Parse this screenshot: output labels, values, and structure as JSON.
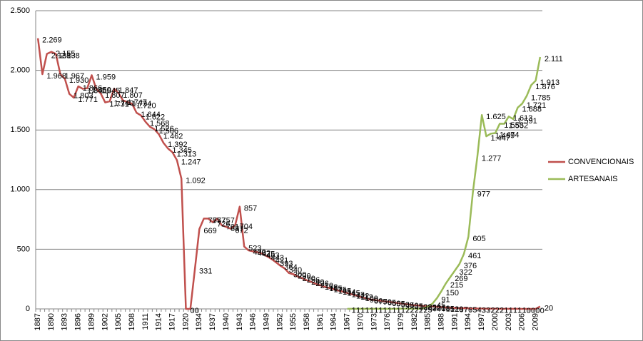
{
  "chart_data": {
    "type": "line",
    "categories": [
      "1887",
      null,
      null,
      "1890",
      null,
      null,
      "1893",
      null,
      null,
      "1896",
      null,
      null,
      "1899",
      null,
      null,
      "1902",
      null,
      null,
      "1905",
      null,
      null,
      "1908",
      null,
      null,
      "1911",
      null,
      null,
      "1914",
      null,
      null,
      "1917",
      null,
      null,
      "1920",
      null,
      null,
      "1934",
      null,
      null,
      "1937",
      null,
      null,
      "1940",
      null,
      null,
      "1943",
      null,
      null,
      "1946",
      null,
      null,
      "1949",
      null,
      null,
      "1952",
      null,
      null,
      "1955",
      null,
      null,
      "1958",
      null,
      null,
      "1961",
      null,
      null,
      "1964",
      null,
      null,
      "1967",
      null,
      null,
      "1970",
      null,
      null,
      "1973",
      null,
      null,
      "1976",
      null,
      null,
      "1979",
      null,
      null,
      "1982",
      null,
      null,
      "1985",
      null,
      null,
      "1988",
      null,
      null,
      "1991",
      null,
      null,
      "1994",
      null,
      null,
      "1997",
      null,
      null,
      "2000",
      null,
      null,
      "2003",
      null,
      null,
      "2006",
      null,
      null,
      "2009",
      null
    ],
    "series": [
      {
        "name": "CONVENCIONAIS",
        "color": "#c0504d",
        "values": [
          2269,
          1968,
          2138,
          2155,
          2138,
          1967,
          1930,
          1803,
          1771,
          1866,
          1845,
          1850,
          1959,
          1845,
          1807,
          1731,
          1740,
          1847,
          1807,
          1747,
          1734,
          1720,
          1644,
          1622,
          1568,
          1526,
          1506,
          1462,
          1392,
          1345,
          1313,
          1247,
          1092,
          0,
          0,
          331,
          669,
          757,
          757,
          726,
          757,
          701,
          687,
          672,
          704,
          857,
          523,
          490,
          482,
          475,
          463,
          443,
          421,
          393,
          364,
          340,
          300,
          290,
          270,
          256,
          240,
          226,
          210,
          198,
          185,
          175,
          165,
          154,
          145,
          133,
          122,
          112,
          100,
          90,
          80,
          75,
          70,
          65,
          60,
          55,
          50,
          45,
          40,
          35,
          30,
          28,
          25,
          22,
          20,
          18,
          15,
          12,
          10,
          8,
          7,
          6,
          5,
          4,
          3,
          3,
          2,
          2,
          2,
          1,
          1,
          1,
          1,
          1,
          0,
          0,
          0,
          0,
          20
        ],
        "value_labels": [
          "2.269",
          "1.968",
          "2.138",
          "2.155",
          "2.138",
          "1.967",
          "1.930",
          "1.803",
          "1.771",
          "1.866",
          "1.845",
          "1.850",
          "1.959",
          "1.845",
          "1.807",
          "1.731",
          "1.740",
          "1.847",
          "1.807",
          "1.747",
          "1.734",
          "1.720",
          "1.644",
          "1.622",
          "1.568",
          "1.526",
          "1.506",
          "1.462",
          "1.392",
          "1.345",
          "1.313",
          "1.247",
          "1.092",
          "0",
          "0",
          "331",
          "669",
          "757",
          "757",
          "726",
          "757",
          "701",
          "687",
          "672",
          "704",
          "857",
          "523",
          "490",
          "482",
          "475",
          "463",
          "443",
          "421",
          "393",
          "364",
          "340",
          "300",
          "290",
          "270",
          "256",
          "240",
          "226",
          "210",
          "198",
          "185",
          "175",
          "165",
          "154",
          "145",
          "133",
          "122",
          "112",
          "100",
          "90",
          "80",
          "75",
          "70",
          "65",
          "60",
          "55",
          "50",
          "45",
          "40",
          "35",
          "30",
          "28",
          "25",
          "22",
          "20",
          "18",
          "15",
          "12",
          "10",
          "8",
          "7",
          "6",
          "5",
          "4",
          "3",
          "3",
          "2",
          "2",
          "2",
          "1",
          "1",
          "1",
          "1",
          "1",
          "0",
          "0",
          "0",
          "0",
          "20"
        ]
      },
      {
        "name": "ARTESANAIS",
        "color": "#9bbb59",
        "values": [
          null,
          null,
          null,
          null,
          null,
          null,
          null,
          null,
          null,
          null,
          null,
          null,
          null,
          null,
          null,
          null,
          null,
          null,
          null,
          null,
          null,
          null,
          null,
          null,
          null,
          null,
          null,
          null,
          null,
          null,
          null,
          null,
          null,
          null,
          null,
          null,
          null,
          null,
          null,
          null,
          null,
          null,
          null,
          null,
          null,
          null,
          null,
          null,
          null,
          null,
          null,
          null,
          null,
          null,
          null,
          null,
          null,
          null,
          null,
          null,
          null,
          null,
          null,
          null,
          null,
          null,
          null,
          null,
          null,
          1,
          1,
          1,
          1,
          1,
          1,
          1,
          1,
          1,
          1,
          1,
          1,
          2,
          2,
          2,
          2,
          2,
          5,
          20,
          45,
          91,
          150,
          215,
          269,
          322,
          376,
          461,
          605,
          977,
          1277,
          1625,
          1447,
          1469,
          1474,
          1553,
          1552,
          1613,
          1591,
          1688,
          1721,
          1785,
          1876,
          1913,
          2111
        ],
        "value_labels": [
          null,
          null,
          null,
          null,
          null,
          null,
          null,
          null,
          null,
          null,
          null,
          null,
          null,
          null,
          null,
          null,
          null,
          null,
          null,
          null,
          null,
          null,
          null,
          null,
          null,
          null,
          null,
          null,
          null,
          null,
          null,
          null,
          null,
          null,
          null,
          null,
          null,
          null,
          null,
          null,
          null,
          null,
          null,
          null,
          null,
          null,
          null,
          null,
          null,
          null,
          null,
          null,
          null,
          null,
          null,
          null,
          null,
          null,
          null,
          null,
          null,
          null,
          null,
          null,
          null,
          null,
          null,
          null,
          null,
          "1",
          "1",
          "1",
          "1",
          "1",
          "1",
          "1",
          "1",
          "1",
          "1",
          "1",
          "1",
          "2",
          "2",
          "2",
          "2",
          "2",
          "5",
          "20",
          "45",
          "91",
          "150",
          "215",
          "269",
          "322",
          "376",
          "461",
          "605",
          "977",
          "1.277",
          "1.625",
          "1.447",
          "1.469",
          "1.474",
          "1.553",
          "1.552",
          "1.613",
          "1.591",
          "1.688",
          "1.721",
          "1.785",
          "1.876",
          "1.913",
          "2.111"
        ]
      }
    ],
    "ylim": [
      0,
      2500
    ],
    "yticks": [
      0,
      500,
      {
        "value": 1000,
        "label": "1.000"
      },
      {
        "value": 1500,
        "label": "1.500"
      },
      {
        "value": 2000,
        "label": "2.000"
      },
      {
        "value": 2500,
        "label": "2.500"
      }
    ],
    "grid": true,
    "legend": "right"
  }
}
